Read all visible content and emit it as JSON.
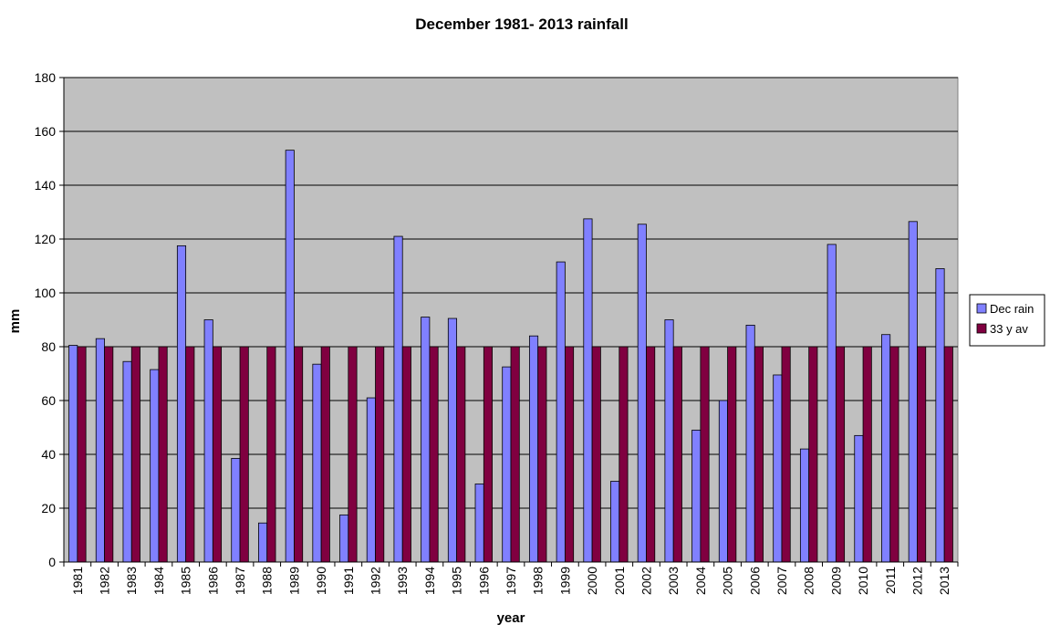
{
  "chart_data": {
    "type": "bar",
    "title": "December 1981- 2013 rainfall",
    "xlabel": "year",
    "ylabel": "mm",
    "ylim": [
      0,
      180
    ],
    "yticks": [
      0,
      20,
      40,
      60,
      80,
      100,
      120,
      140,
      160,
      180
    ],
    "grid": true,
    "legend_position": "right",
    "categories": [
      "1981",
      "1982",
      "1983",
      "1984",
      "1985",
      "1986",
      "1987",
      "1988",
      "1989",
      "1990",
      "1991",
      "1992",
      "1993",
      "1994",
      "1995",
      "1996",
      "1997",
      "1998",
      "1999",
      "2000",
      "2001",
      "2002",
      "2003",
      "2004",
      "2005",
      "2006",
      "2007",
      "2008",
      "2009",
      "2010",
      "2011",
      "2012",
      "2013"
    ],
    "series": [
      {
        "name": "Dec rain",
        "color": "#8080ff",
        "values": [
          80.5,
          83,
          74.5,
          71.5,
          117.5,
          90,
          38.5,
          14.5,
          153,
          73.5,
          17.5,
          61,
          121,
          91,
          90.5,
          29,
          72.5,
          84,
          111.5,
          127.5,
          30,
          125.5,
          90,
          49,
          60,
          88,
          69.5,
          42,
          118,
          47,
          84.5,
          126.5,
          109
        ]
      },
      {
        "name": "33 y av",
        "color": "#800040",
        "values": [
          80,
          80,
          80,
          80,
          80,
          80,
          80,
          80,
          80,
          80,
          80,
          80,
          80,
          80,
          80,
          80,
          80,
          80,
          80,
          80,
          80,
          80,
          80,
          80,
          80,
          80,
          80,
          80,
          80,
          80,
          80,
          80,
          80
        ]
      }
    ],
    "colors": {
      "plot_background": "#c0c0c0",
      "gridline": "#000000"
    }
  }
}
